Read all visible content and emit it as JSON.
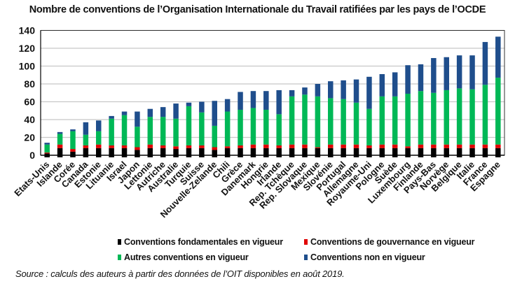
{
  "chart_data": {
    "type": "bar",
    "stacked": true,
    "title": "Nombre de conventions de l’Organisation Internationale du Travail ratifiées par les pays de l’OCDE",
    "xlabel": "",
    "ylabel": "",
    "ylim": [
      0,
      140
    ],
    "yticks": [
      0,
      20,
      40,
      60,
      80,
      100,
      120,
      140
    ],
    "grid": true,
    "legend_position": "bottom",
    "categories": [
      "Etats-Unis",
      "Islande",
      "Corée",
      "Canada",
      "Estonie",
      "Lituanie",
      "Israel",
      "Japon",
      "Lettonie",
      "Autriche",
      "Australie",
      "Turquie",
      "Suisse",
      "Nouvelle-Zelande",
      "Chili",
      "Grèce",
      "Danemark",
      "Hongrie",
      "Irlande",
      "Rep. Tchèque",
      "Rep. Slovaque",
      "Mexique",
      "Slovénie",
      "Portugal",
      "Allemagne",
      "Royaume-Uni",
      "Pologne",
      "Suède",
      "Luxembourg",
      "Finlande",
      "Pays-Bas",
      "Norvège",
      "Belgique",
      "Italie",
      "France",
      "Espagne"
    ],
    "series": [
      {
        "name": "Conventions fondamentales en vigueur",
        "color": "#000000",
        "values": [
          2,
          8,
          4,
          8,
          8,
          8,
          8,
          6,
          8,
          8,
          7,
          8,
          8,
          6,
          8,
          8,
          8,
          8,
          8,
          8,
          8,
          8,
          8,
          8,
          8,
          8,
          8,
          8,
          8,
          8,
          8,
          8,
          8,
          8,
          8,
          8
        ]
      },
      {
        "name": "Conventions de gouvernance en vigueur",
        "color": "#e00000",
        "values": [
          1,
          4,
          3,
          3,
          4,
          3,
          3,
          3,
          4,
          3,
          3,
          3,
          3,
          3,
          2,
          3,
          4,
          4,
          3,
          4,
          4,
          1,
          4,
          4,
          4,
          3,
          4,
          4,
          2,
          4,
          4,
          4,
          4,
          4,
          4,
          4
        ]
      },
      {
        "name": "Autres conventions en vigueur",
        "color": "#00b856",
        "values": [
          9,
          12,
          20,
          12,
          15,
          30,
          34,
          23,
          31,
          32,
          31,
          44,
          37,
          24,
          39,
          40,
          41,
          39,
          35,
          54,
          56,
          57,
          52,
          51,
          47,
          41,
          54,
          54,
          59,
          60,
          58,
          61,
          63,
          62,
          67,
          75
        ]
      },
      {
        "name": "Conventions non en vigueur",
        "color": "#1f4e8c",
        "values": [
          2,
          2,
          2,
          14,
          12,
          3,
          4,
          17,
          9,
          11,
          17,
          4,
          12,
          28,
          14,
          20,
          19,
          21,
          27,
          7,
          8,
          14,
          19,
          21,
          26,
          36,
          25,
          27,
          32,
          30,
          39,
          37,
          37,
          38,
          48,
          46
        ]
      }
    ]
  },
  "legend": [
    {
      "label": "Conventions fondamentales en vigueur",
      "color": "#000000"
    },
    {
      "label": "Conventions de gouvernance en vigueur",
      "color": "#e00000"
    },
    {
      "label": "Autres conventions en vigueur",
      "color": "#00b856"
    },
    {
      "label": "Conventions non en vigueur",
      "color": "#1f4e8c"
    }
  ],
  "source": "Source : calculs des auteurs à partir des données de l’OIT disponibles en août 2019."
}
